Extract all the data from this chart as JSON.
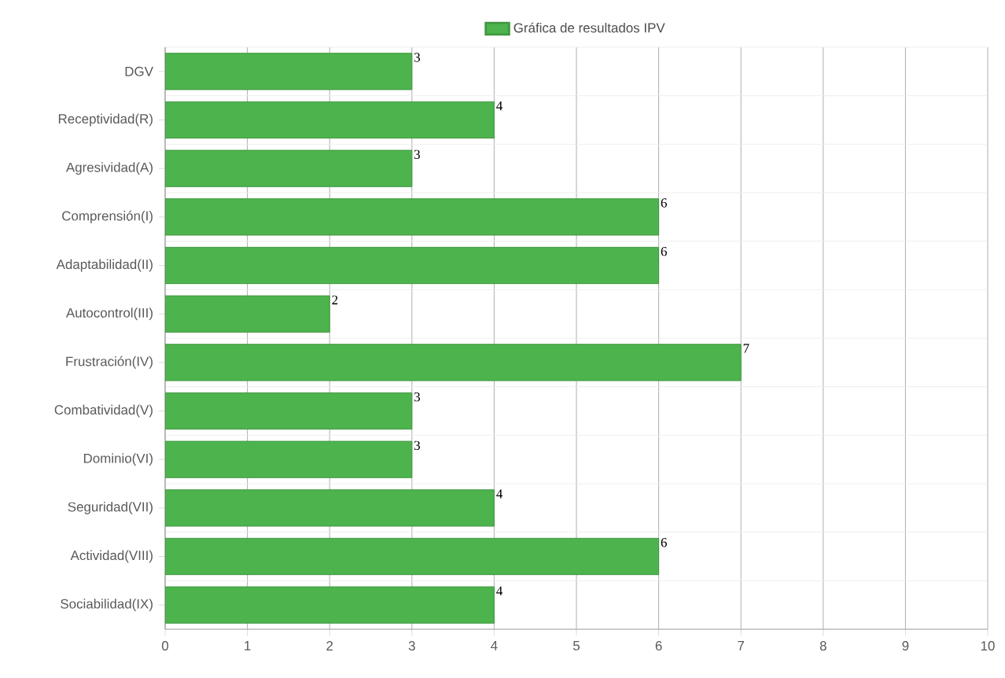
{
  "chart_data": {
    "type": "bar",
    "orientation": "horizontal",
    "categories": [
      "DGV",
      "Receptividad(R)",
      "Agresividad(A)",
      "Comprensión(I)",
      "Adaptabilidad(II)",
      "Autocontrol(III)",
      "Frustración(IV)",
      "Combatividad(V)",
      "Dominio(VI)",
      "Seguridad(VII)",
      "Actividad(VIII)",
      "Sociabilidad(IX)"
    ],
    "series": [
      {
        "name": "Gráfica de resultados IPV",
        "color": "#4db34d",
        "values": [
          3,
          4,
          3,
          6,
          6,
          2,
          7,
          3,
          3,
          4,
          6,
          4
        ]
      }
    ],
    "xlim": [
      0,
      10
    ],
    "xticks": [
      0,
      1,
      2,
      3,
      4,
      5,
      6,
      7,
      8,
      9,
      10
    ],
    "grid": true,
    "legend": "top",
    "data_labels": true
  }
}
